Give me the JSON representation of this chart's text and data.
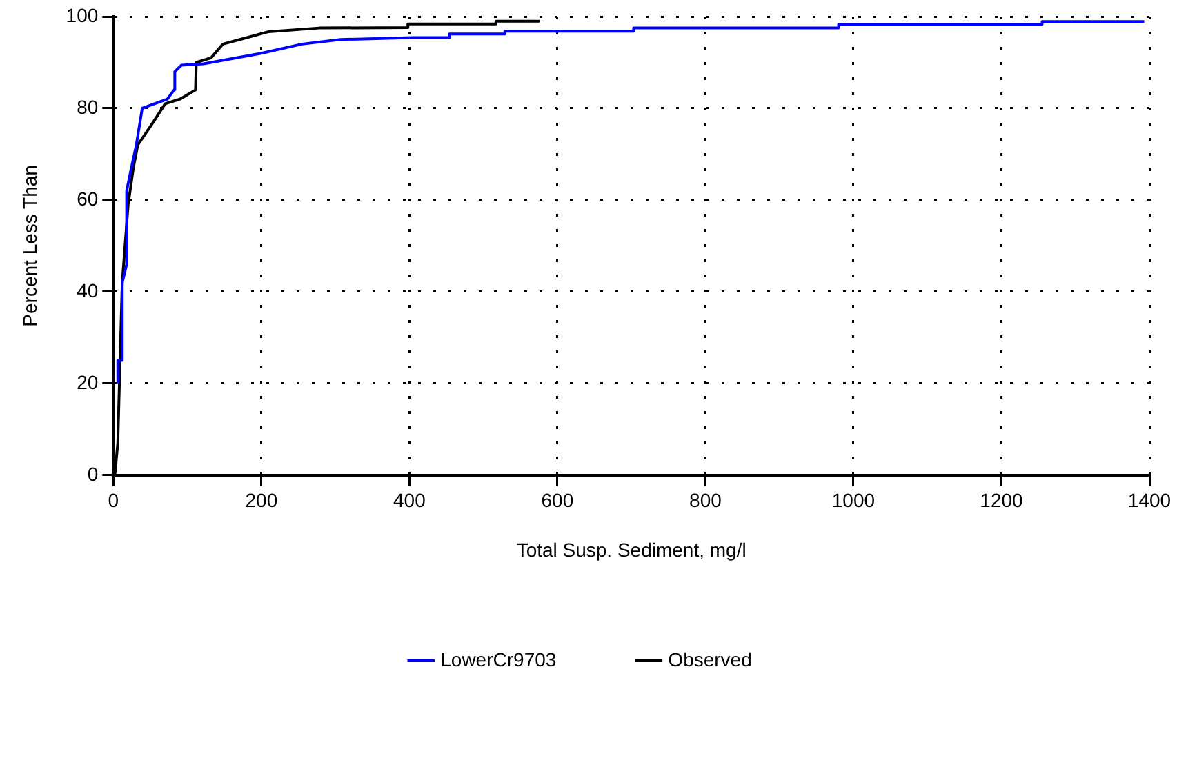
{
  "chart_data": {
    "type": "line",
    "xlabel": "Total Susp. Sediment, mg/l",
    "ylabel": "Percent Less Than",
    "xlim": [
      0,
      1400
    ],
    "ylim": [
      0,
      100
    ],
    "xticks": [
      0,
      200,
      400,
      600,
      800,
      1000,
      1200,
      1400
    ],
    "yticks": [
      0,
      20,
      40,
      60,
      80,
      100
    ],
    "grid": true,
    "legend": "bottom",
    "marker": "none",
    "line_style": "solid",
    "series": [
      {
        "name": "LowerCr9703",
        "color": "#0000ff",
        "x": [
          6,
          6,
          12,
          12,
          18,
          18,
          23,
          31,
          39,
          73,
          82,
          83,
          92,
          122,
          200,
          255,
          307,
          405,
          454,
          454,
          529,
          529,
          703,
          703,
          980,
          980,
          1255,
          1255,
          1393
        ],
        "values": [
          20,
          25,
          25,
          42,
          46,
          62,
          66,
          72,
          80,
          82,
          84,
          88,
          89.4,
          89.7,
          92,
          94,
          95,
          95.4,
          95.4,
          96.2,
          96.2,
          96.8,
          96.8,
          97.5,
          97.5,
          98.3,
          98.3,
          98.9,
          98.9
        ]
      },
      {
        "name": "Observed",
        "color": "#000000",
        "x": [
          2,
          6,
          8,
          12,
          20,
          27,
          33,
          54,
          70,
          90,
          111,
          112,
          132,
          148,
          171,
          210,
          278,
          398,
          398,
          517,
          517,
          576
        ],
        "values": [
          0,
          7,
          19,
          42,
          59,
          67,
          72,
          77,
          81,
          82,
          84,
          90,
          91,
          94,
          95,
          96.7,
          97.5,
          97.6,
          98.4,
          98.4,
          99,
          99
        ]
      }
    ]
  }
}
